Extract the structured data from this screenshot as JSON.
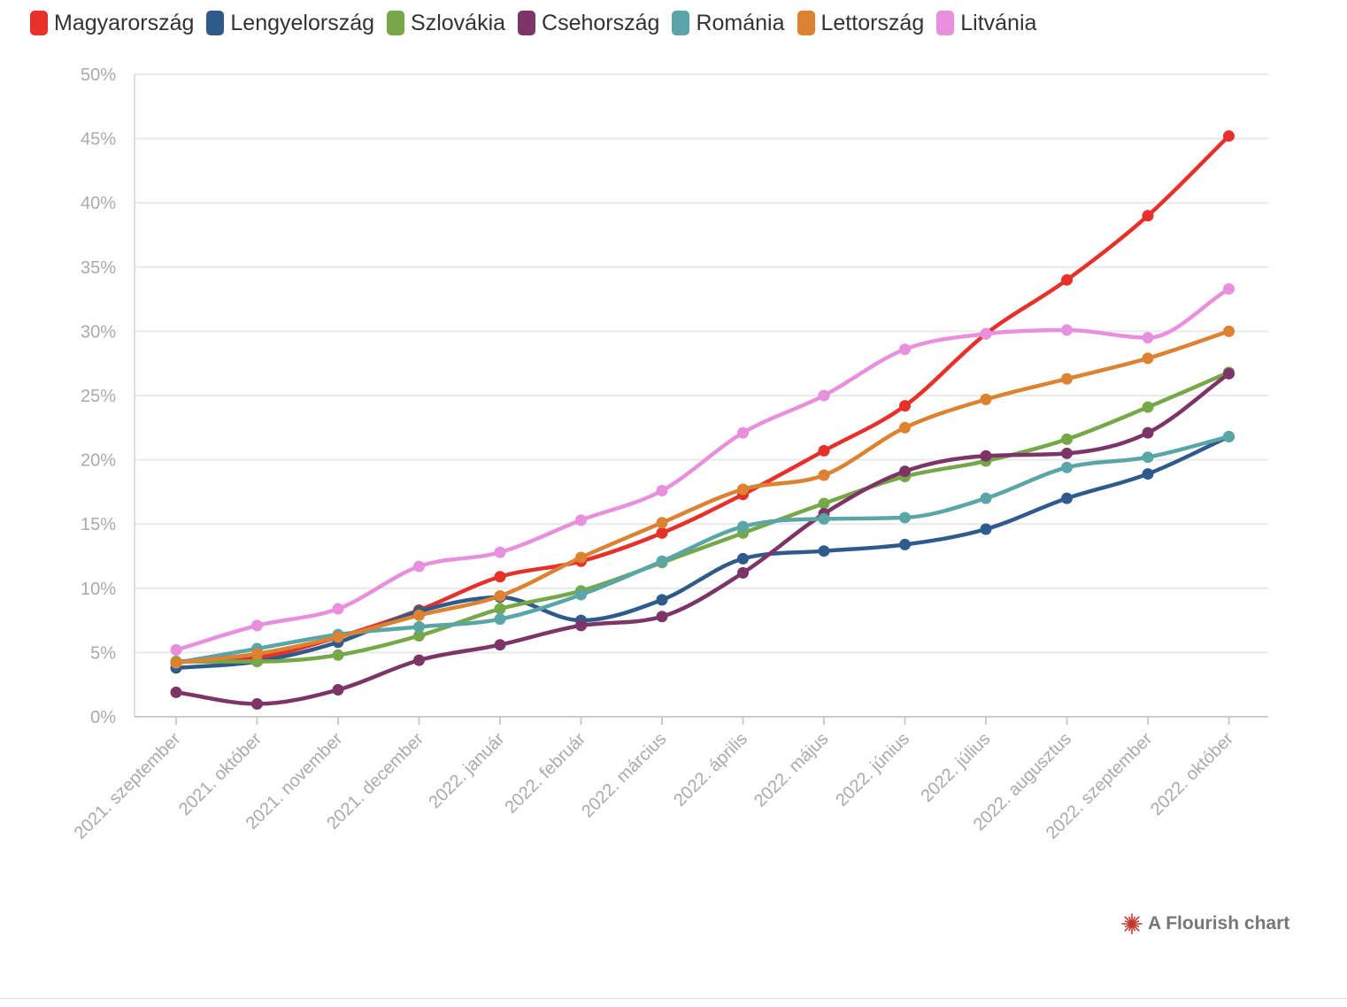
{
  "chart_data": {
    "type": "line",
    "title": "",
    "xlabel": "",
    "ylabel": "",
    "ylim": [
      0,
      50
    ],
    "yticks": [
      "0%",
      "5%",
      "10%",
      "15%",
      "20%",
      "25%",
      "30%",
      "35%",
      "40%",
      "45%",
      "50%"
    ],
    "grid": "horizontal",
    "legend_position": "top-left",
    "categories": [
      "2021. szeptember",
      "2021. október",
      "2021. november",
      "2021. december",
      "2022. január",
      "2022. február",
      "2022. március",
      "2022. április",
      "2022. május",
      "2022. június",
      "2022. július",
      "2022. augusztus",
      "2022. szeptember",
      "2022. október"
    ],
    "series": [
      {
        "name": "Magyarország",
        "color": "#e8302a",
        "values": [
          4.3,
          4.6,
          6.2,
          8.3,
          10.9,
          12.1,
          14.3,
          17.3,
          20.7,
          24.2,
          29.8,
          34.0,
          39.0,
          45.2
        ]
      },
      {
        "name": "Lengyelország",
        "color": "#2e5b8c",
        "values": [
          3.8,
          4.3,
          5.8,
          8.2,
          9.3,
          7.5,
          9.1,
          12.3,
          12.9,
          13.4,
          14.6,
          17.0,
          18.9,
          21.8
        ]
      },
      {
        "name": "Szlovákia",
        "color": "#76a84a",
        "values": [
          4.3,
          4.3,
          4.8,
          6.3,
          8.4,
          9.8,
          12.0,
          14.3,
          16.6,
          18.7,
          19.9,
          21.6,
          24.1,
          26.8
        ]
      },
      {
        "name": "Csehország",
        "color": "#7d3568",
        "values": [
          1.9,
          1.0,
          2.1,
          4.4,
          5.6,
          7.1,
          7.8,
          11.2,
          15.8,
          19.1,
          20.3,
          20.5,
          22.1,
          26.7
        ]
      },
      {
        "name": "Románia",
        "color": "#5aa5a8",
        "values": [
          4.2,
          5.3,
          6.4,
          7.0,
          7.6,
          9.5,
          12.1,
          14.8,
          15.4,
          15.5,
          17.0,
          19.4,
          20.2,
          21.8
        ]
      },
      {
        "name": "Lettország",
        "color": "#dc8230",
        "values": [
          4.2,
          4.9,
          6.2,
          7.9,
          9.4,
          12.4,
          15.1,
          17.7,
          18.8,
          22.5,
          24.7,
          26.3,
          27.9,
          30.0
        ]
      },
      {
        "name": "Litvánia",
        "color": "#e88fdd",
        "values": [
          5.2,
          7.1,
          8.4,
          11.7,
          12.8,
          15.3,
          17.6,
          22.1,
          25.0,
          28.6,
          29.8,
          30.1,
          29.5,
          33.3
        ]
      }
    ]
  },
  "credit": {
    "text": "A Flourish chart",
    "icon": "flourish-burst-icon",
    "color": "#c0392b"
  }
}
